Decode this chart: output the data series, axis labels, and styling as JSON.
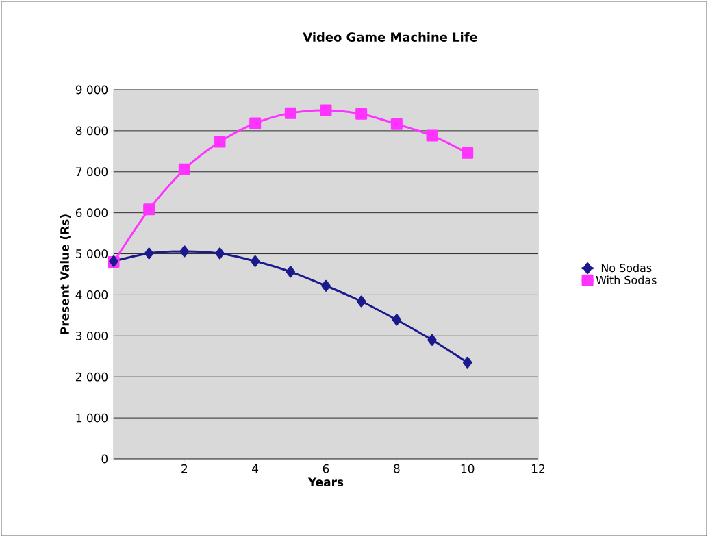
{
  "chart_data": {
    "type": "line",
    "title": "Video Game Machine Life",
    "xlabel": "Years",
    "ylabel": "Present Value (Rs)",
    "x": [
      0,
      1,
      2,
      3,
      4,
      5,
      6,
      7,
      8,
      9,
      10
    ],
    "series": [
      {
        "name": "No Sodas",
        "color": "#1a1a8c",
        "marker": "diamond",
        "values": [
          4820,
          5010,
          5060,
          5010,
          4820,
          4560,
          4220,
          3840,
          3390,
          2900,
          2350
        ]
      },
      {
        "name": "With Sodas",
        "color": "#ff33ff",
        "marker": "square",
        "values": [
          4800,
          6080,
          7060,
          7730,
          8180,
          8430,
          8500,
          8410,
          8160,
          7880,
          7460
        ]
      }
    ],
    "xlim": [
      0,
      12
    ],
    "xticks": [
      {
        "value": 0,
        "label": null
      },
      2,
      4,
      6,
      8,
      10,
      12
    ],
    "ylim": [
      0,
      9000
    ],
    "yticks": [
      {
        "value": 0,
        "label": "0"
      },
      {
        "value": 1000,
        "label": "1 000"
      },
      {
        "value": 2000,
        "label": "2 000"
      },
      {
        "value": 3000,
        "label": "3 000"
      },
      {
        "value": 4000,
        "label": "4 000"
      },
      {
        "value": 5000,
        "label": "5 000"
      },
      {
        "value": 6000,
        "label": "6 000"
      },
      {
        "value": 7000,
        "label": "7 000"
      },
      {
        "value": 8000,
        "label": "8 000"
      },
      {
        "value": 9000,
        "label": "9 000"
      }
    ],
    "grid": "y",
    "legend": "right",
    "line_style": "solid"
  }
}
